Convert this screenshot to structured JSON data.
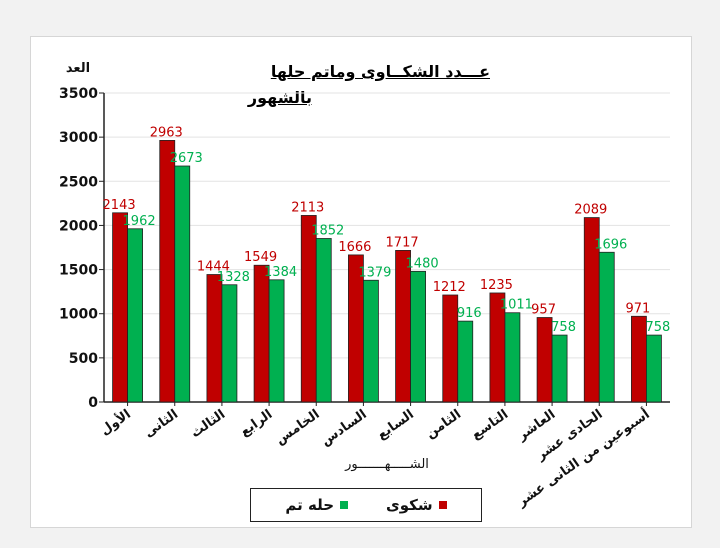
{
  "chart_data": {
    "type": "bar",
    "title_line1": "عـــدد الشكــاوى وماتم حلها",
    "title_line2": "بالشهور",
    "xlabel": "الشـــــهـــــــور",
    "ylabel": "العد",
    "ylim": [
      0,
      3500
    ],
    "yticks": [
      0,
      500,
      1000,
      1500,
      2000,
      2500,
      3000,
      3500
    ],
    "grid": true,
    "legend_position": "bottom",
    "categories": [
      "الأول",
      "الثانى",
      "الثالث",
      "الرابع",
      "الخامس",
      "السادس",
      "السابع",
      "الثامن",
      "التاسع",
      "العاشر",
      "الحادى عشر",
      "أسبوعين من الثانى عشر"
    ],
    "series": [
      {
        "name": "شكوى",
        "color": "#c00000",
        "values": [
          2143,
          2963,
          1444,
          1549,
          2113,
          1666,
          1717,
          1212,
          1235,
          957,
          2089,
          971
        ]
      },
      {
        "name": "حله تم",
        "color": "#00b050",
        "values": [
          1962,
          2673,
          1328,
          1384,
          1852,
          1379,
          1480,
          916,
          1011,
          758,
          1696,
          758
        ]
      }
    ]
  }
}
